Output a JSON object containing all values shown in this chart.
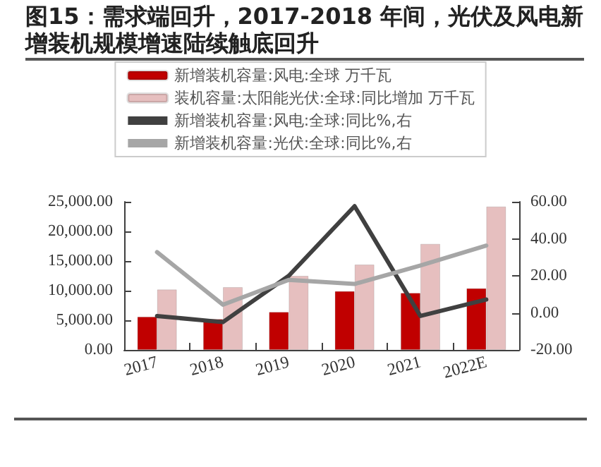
{
  "chart_data": {
    "type": "bar",
    "title": "图15：需求端回升，2017-2018 年间，光伏及风电新增装机规模增速陆续触底回升",
    "categories": [
      "2017",
      "2018",
      "2019",
      "2020",
      "2021",
      "2022E"
    ],
    "series": [
      {
        "name": "新增装机容量:风电:全球 万千瓦",
        "color": "#c00000",
        "values": [
          5600,
          5200,
          6400,
          9900,
          9600,
          10400
        ]
      },
      {
        "name": "装机容量:太阳能光伏:全球:同比增加 万千瓦",
        "color": "#e6bfbf",
        "values": [
          10200,
          10600,
          12500,
          14400,
          17900,
          24200
        ]
      },
      {
        "name": "新增装机容量:风电:全球:同比%,右",
        "type": "line",
        "axis": "y2",
        "color": "#404040",
        "values": [
          -1.7,
          -5,
          20,
          57.6,
          -1.7,
          7.2
        ]
      },
      {
        "name": "新增装机容量:光伏:全球:同比%,右",
        "type": "line",
        "axis": "y2",
        "color": "#a6a6a6",
        "values": [
          32.8,
          4.4,
          17.8,
          15.6,
          25.6,
          36.3
        ]
      }
    ],
    "ylim": [
      0,
      25000
    ],
    "yticks": [
      {
        "value": 0,
        "label": "0.00"
      },
      {
        "value": 5000,
        "label": "5,000.00"
      },
      {
        "value": 10000,
        "label": "10,000.00"
      },
      {
        "value": 15000,
        "label": "15,000.00"
      },
      {
        "value": 20000,
        "label": "20,000.00"
      },
      {
        "value": 25000,
        "label": "25,000.00"
      }
    ],
    "y2lim": [
      -20,
      60
    ],
    "y2ticks": [
      {
        "value": -20,
        "label": "-20.00"
      },
      {
        "value": 0,
        "label": "0.00"
      },
      {
        "value": 20,
        "label": "20.00"
      },
      {
        "value": 40,
        "label": "40.00"
      },
      {
        "value": 60,
        "label": "60.00"
      }
    ],
    "legend": "top",
    "grid": false,
    "marker": "none"
  }
}
